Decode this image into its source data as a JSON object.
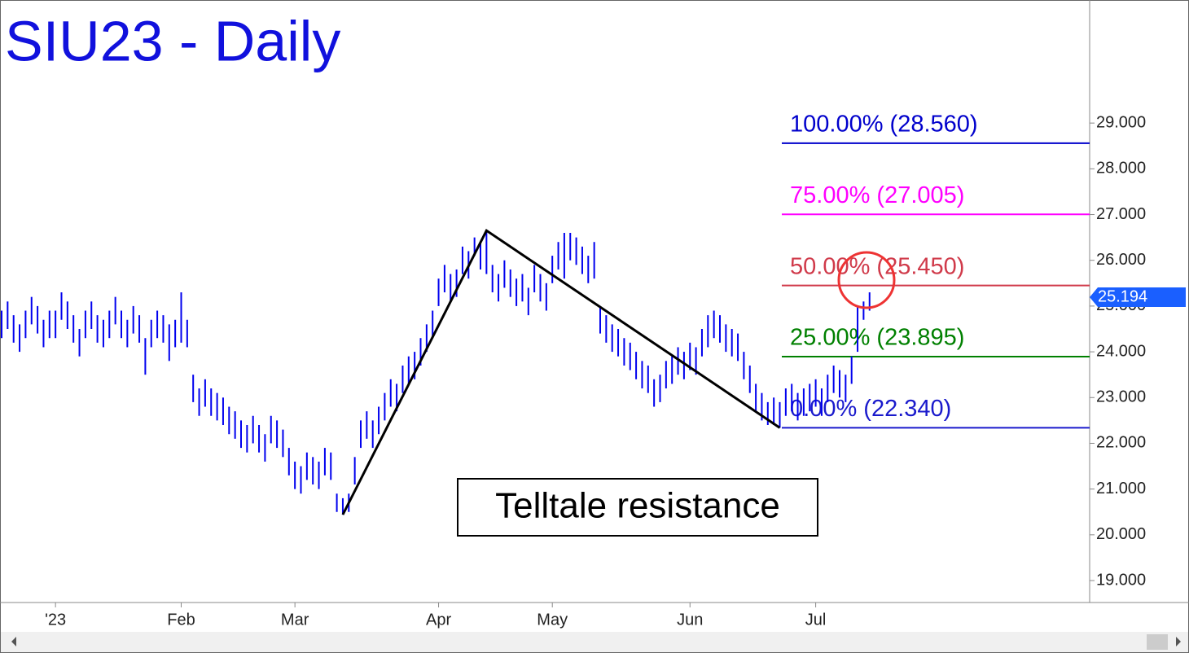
{
  "chart_data": {
    "type": "ohlc-bars",
    "title": "SIU23 - Daily",
    "color": "#0000ee",
    "categories": [
      null,
      null,
      null,
      null,
      null,
      null,
      null,
      null,
      null,
      "'23",
      null,
      null,
      null,
      null,
      null,
      null,
      null,
      null,
      null,
      null,
      null,
      null,
      null,
      null,
      null,
      null,
      null,
      null,
      null,
      null,
      "Feb",
      null,
      null,
      null,
      null,
      null,
      null,
      null,
      null,
      null,
      null,
      null,
      null,
      null,
      null,
      null,
      null,
      null,
      null,
      "Mar",
      null,
      null,
      null,
      null,
      null,
      null,
      null,
      null,
      null,
      null,
      null,
      null,
      null,
      null,
      null,
      null,
      null,
      null,
      null,
      null,
      null,
      null,
      null,
      "Apr",
      null,
      null,
      null,
      null,
      null,
      null,
      null,
      null,
      null,
      null,
      null,
      null,
      null,
      null,
      null,
      null,
      null,
      null,
      "May",
      null,
      null,
      null,
      null,
      null,
      null,
      null,
      null,
      null,
      null,
      null,
      null,
      null,
      null,
      null,
      null,
      null,
      null,
      null,
      null,
      null,
      null,
      "Jun",
      null,
      null,
      null,
      null,
      null,
      null,
      null,
      null,
      null,
      null,
      null,
      null,
      null,
      null,
      null,
      null,
      null,
      null,
      null,
      null,
      "Jul",
      null,
      null,
      null,
      null,
      null,
      null,
      null,
      null,
      null
    ],
    "high": [
      24.9,
      25.1,
      24.8,
      24.6,
      24.9,
      25.2,
      25.0,
      24.7,
      24.9,
      24.9,
      25.3,
      25.1,
      24.8,
      24.5,
      24.9,
      25.1,
      24.8,
      24.7,
      24.9,
      25.2,
      24.9,
      24.7,
      25.0,
      24.8,
      24.3,
      24.7,
      24.9,
      24.8,
      24.6,
      24.7,
      25.3,
      24.7,
      23.5,
      23.2,
      23.4,
      23.2,
      23.1,
      23.0,
      22.8,
      22.7,
      22.5,
      22.4,
      22.6,
      22.4,
      22.2,
      22.6,
      22.5,
      22.3,
      21.9,
      21.6,
      21.5,
      21.8,
      21.7,
      21.6,
      21.9,
      21.8,
      20.9,
      20.8,
      20.9,
      21.7,
      22.5,
      22.7,
      22.5,
      22.8,
      23.1,
      23.4,
      23.3,
      23.7,
      23.9,
      24.0,
      24.3,
      24.6,
      24.9,
      25.6,
      25.9,
      25.7,
      25.8,
      26.3,
      26.2,
      26.5,
      26.4,
      26.65,
      25.9,
      25.7,
      26.0,
      25.8,
      25.6,
      25.7,
      25.4,
      25.9,
      25.7,
      25.5,
      26.1,
      26.4,
      26.6,
      26.6,
      26.5,
      26.3,
      26.1,
      26.4,
      25.0,
      24.8,
      24.6,
      24.5,
      24.3,
      24.2,
      24.0,
      23.8,
      23.7,
      23.4,
      23.5,
      23.8,
      23.9,
      24.1,
      24.0,
      24.2,
      24.1,
      24.5,
      24.8,
      24.9,
      24.8,
      24.6,
      24.5,
      24.4,
      24.0,
      23.7,
      23.3,
      23.1,
      22.9,
      23.0,
      22.9,
      23.2,
      23.3,
      23.1,
      23.2,
      23.3,
      23.4,
      23.2,
      23.5,
      23.7,
      23.6,
      23.5,
      23.9,
      25.0,
      25.1,
      25.3
    ],
    "low": [
      24.3,
      24.5,
      24.2,
      24.0,
      24.3,
      24.6,
      24.4,
      24.1,
      24.3,
      24.3,
      24.7,
      24.5,
      24.2,
      23.9,
      24.3,
      24.5,
      24.2,
      24.1,
      24.3,
      24.6,
      24.3,
      24.1,
      24.4,
      24.2,
      23.5,
      24.1,
      24.3,
      24.2,
      23.8,
      24.1,
      24.2,
      24.1,
      22.9,
      22.6,
      22.8,
      22.6,
      22.5,
      22.4,
      22.2,
      22.1,
      21.9,
      21.8,
      22.0,
      21.8,
      21.6,
      22.0,
      21.9,
      21.7,
      21.3,
      21.0,
      20.9,
      21.2,
      21.1,
      21.0,
      21.3,
      21.2,
      20.5,
      20.44,
      20.5,
      21.1,
      21.9,
      22.1,
      21.9,
      22.2,
      22.5,
      22.8,
      22.7,
      23.1,
      23.3,
      23.4,
      23.7,
      24.0,
      24.3,
      25.0,
      25.3,
      25.1,
      25.2,
      25.7,
      25.6,
      26.1,
      25.8,
      25.7,
      25.3,
      25.1,
      25.4,
      25.2,
      25.0,
      25.1,
      24.8,
      25.3,
      25.1,
      24.9,
      25.5,
      25.8,
      25.6,
      26.0,
      25.9,
      25.7,
      25.5,
      25.6,
      24.4,
      24.2,
      24.0,
      23.9,
      23.7,
      23.6,
      23.4,
      23.2,
      23.1,
      22.8,
      22.9,
      23.2,
      23.3,
      23.5,
      23.4,
      23.6,
      23.5,
      23.9,
      24.1,
      24.3,
      24.2,
      24.0,
      23.9,
      23.8,
      23.4,
      23.1,
      22.7,
      22.5,
      22.4,
      22.4,
      22.34,
      22.6,
      22.7,
      22.5,
      22.6,
      22.7,
      22.8,
      22.6,
      22.9,
      23.1,
      23.0,
      22.9,
      23.3,
      24.0,
      24.7,
      24.9
    ],
    "last_price": 25.194,
    "pivots": [
      {
        "bar": 57,
        "price": 20.44
      },
      {
        "bar": 81,
        "price": 26.65
      },
      {
        "bar": 130,
        "price": 22.34
      }
    ],
    "fib_levels": [
      {
        "value": 28.56,
        "label": "100.00% (28.560)",
        "color": "#0000cc"
      },
      {
        "value": 27.005,
        "label": "75.00% (27.005)",
        "color": "#ff00ff"
      },
      {
        "value": 25.45,
        "label": "50.00% (25.450)",
        "color": "#d03a4a"
      },
      {
        "value": 23.895,
        "label": "25.00% (23.895)",
        "color": "#008000"
      },
      {
        "value": 22.34,
        "label": "0.00% (22.340)",
        "color": "#1a1acc"
      }
    ],
    "annotation": "Telltale resistance",
    "ylim": [
      18.52,
      31.69
    ],
    "yticks": [
      {
        "value": 19,
        "label": "19.000"
      },
      {
        "value": 20,
        "label": "20.000"
      },
      {
        "value": 21,
        "label": "21.000"
      },
      {
        "value": 22,
        "label": "22.000"
      },
      {
        "value": 23,
        "label": "23.000"
      },
      {
        "value": 24,
        "label": "24.000"
      },
      {
        "value": 25,
        "label": "25.000"
      },
      {
        "value": 26,
        "label": "26.000"
      },
      {
        "value": 27,
        "label": "27.000"
      },
      {
        "value": 28,
        "label": "28.000"
      },
      {
        "value": 29,
        "label": "29.000"
      }
    ]
  }
}
